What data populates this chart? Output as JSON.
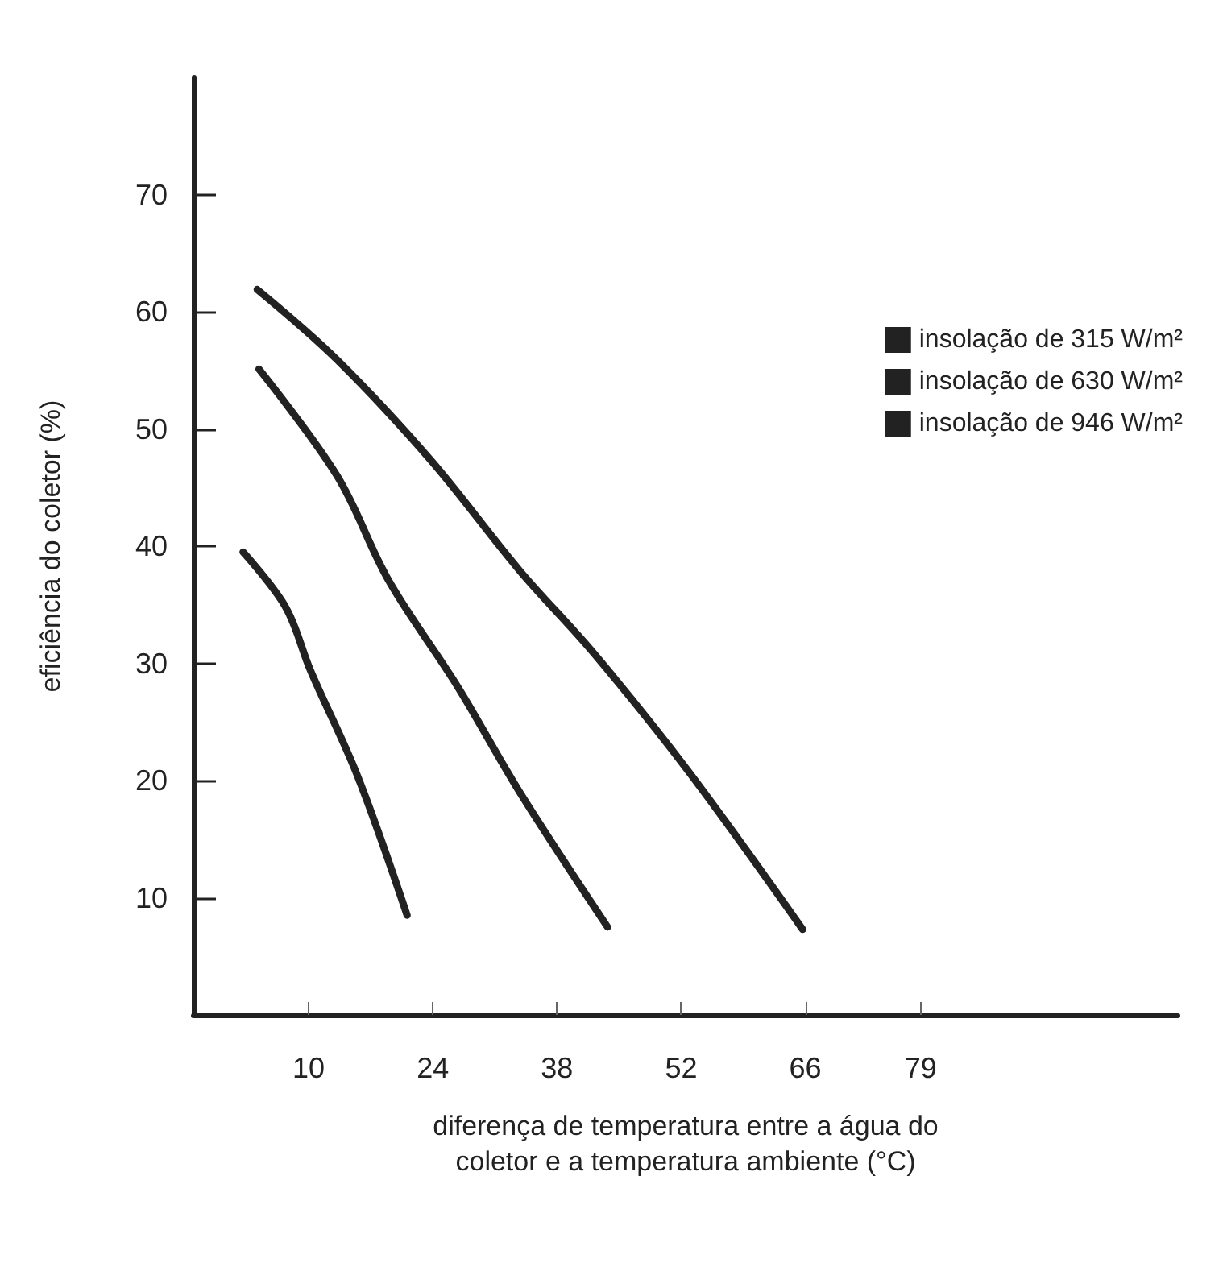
{
  "chart_data": {
    "type": "line",
    "xlabel": "diferença de temperatura entre a água do\ncoletor e a temperatura ambiente (°C)",
    "ylabel": "eficiência do coletor (%)",
    "xlim": [
      -3,
      108
    ],
    "xticks": [
      10,
      24,
      38,
      52,
      66,
      79
    ],
    "ylim": [
      0,
      80
    ],
    "yticks": [
      10,
      20,
      30,
      40,
      50,
      60,
      70
    ],
    "grid": false,
    "legend": "top right",
    "marker": "none",
    "line_style": "solid",
    "series": [
      {
        "name": "insolação de 315 W/m²",
        "color": "#222222",
        "x": [
          2.6,
          7.4,
          10.2,
          15.5,
          21.1
        ],
        "values": [
          39.5,
          34.8,
          29.4,
          20.4,
          8.5
        ]
      },
      {
        "name": "insolação de 630 W/m²",
        "color": "#222222",
        "x": [
          4.4,
          13.2,
          19.0,
          26.8,
          33.8,
          43.7
        ],
        "values": [
          55.1,
          46.0,
          37.1,
          28.0,
          19.0,
          7.5
        ]
      },
      {
        "name": "insolação de 946 W/m²",
        "color": "#222222",
        "x": [
          4.2,
          13.2,
          23.8,
          33.8,
          42.1,
          52.8,
          65.7
        ],
        "values": [
          61.9,
          55.9,
          47.3,
          37.9,
          30.9,
          20.8,
          7.3
        ]
      }
    ]
  }
}
